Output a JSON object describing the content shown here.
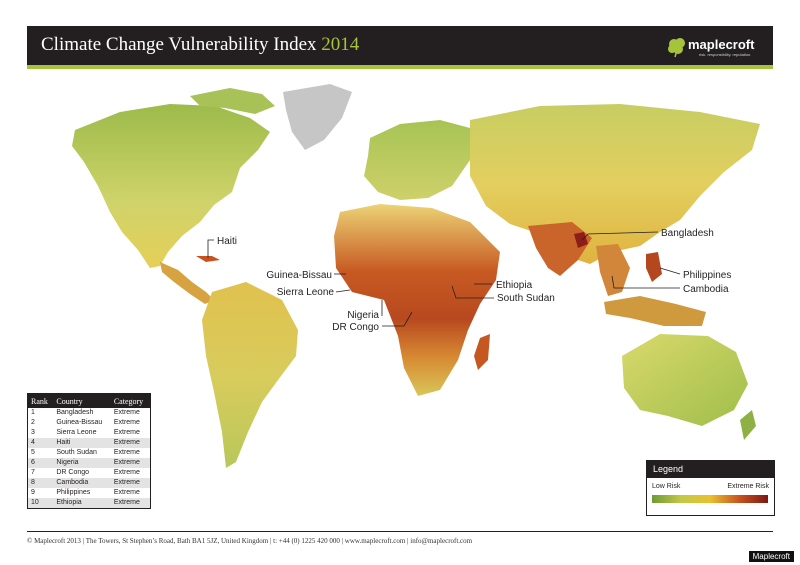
{
  "header": {
    "title": "Climate Change Vulnerability Index",
    "year": "2014",
    "logo_text": "maplecroft",
    "logo_tagline": "risk. responsibility. reputation.",
    "accent_color": "#a6c43b",
    "bar_color": "#231f20"
  },
  "map": {
    "callouts": [
      {
        "label": "Haiti"
      },
      {
        "label": "Guinea-Bissau"
      },
      {
        "label": "Sierra Leone"
      },
      {
        "label": "Nigeria"
      },
      {
        "label": "DR Congo"
      },
      {
        "label": "Ethiopia"
      },
      {
        "label": "South Sudan"
      },
      {
        "label": "Bangladesh"
      },
      {
        "label": "Philippines"
      },
      {
        "label": "Cambodia"
      }
    ]
  },
  "ranking": {
    "headers": [
      "Rank",
      "Country",
      "Category"
    ],
    "rows": [
      {
        "rank": "1",
        "country": "Bangladesh",
        "category": "Extreme"
      },
      {
        "rank": "2",
        "country": "Guinea-Bissau",
        "category": "Extreme"
      },
      {
        "rank": "3",
        "country": "Sierra Leone",
        "category": "Extreme"
      },
      {
        "rank": "4",
        "country": "Haiti",
        "category": "Extreme"
      },
      {
        "rank": "5",
        "country": "South Sudan",
        "category": "Extreme"
      },
      {
        "rank": "6",
        "country": "Nigeria",
        "category": "Extreme"
      },
      {
        "rank": "7",
        "country": "DR Congo",
        "category": "Extreme"
      },
      {
        "rank": "8",
        "country": "Cambodia",
        "category": "Extreme"
      },
      {
        "rank": "9",
        "country": "Philippines",
        "category": "Extreme"
      },
      {
        "rank": "10",
        "country": "Ethiopia",
        "category": "Extreme"
      }
    ]
  },
  "legend": {
    "title": "Legend",
    "low_label": "Low Risk",
    "high_label": "Extreme Risk",
    "colors": [
      "#6f9a37",
      "#c2c945",
      "#e8c130",
      "#c8541f",
      "#7e1814"
    ]
  },
  "footer": {
    "text": "© Maplecroft 2013 | The Towers, St Stephen’s Road, Bath BA1 5JZ, United Kingdom | t: +44 (0) 1225 420 000 | www.maplecroft.com | info@maplecroft.com"
  },
  "watermark": "Maplecroft"
}
